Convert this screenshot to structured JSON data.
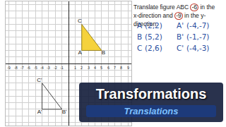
{
  "chart_data": {
    "type": "scatter",
    "xlim": [
      -9.5,
      9.5
    ],
    "ylim": [
      -9.5,
      9.5
    ],
    "xticks": [
      -9,
      -8,
      -7,
      -6,
      -5,
      -4,
      -3,
      -2,
      -1,
      1,
      2,
      3,
      4,
      5,
      6,
      7,
      8,
      9
    ],
    "yticks": [
      -9,
      -8,
      -7,
      -6,
      -5,
      -4,
      -3,
      -2,
      -1,
      1,
      2,
      3,
      4,
      5,
      6,
      7,
      8,
      9
    ],
    "tick_labels": "x",
    "grid": true,
    "series": [
      {
        "name": "ABC",
        "type": "area",
        "color": "#f5d23c",
        "points": [
          {
            "label": "A",
            "x": 2,
            "y": 2
          },
          {
            "label": "B",
            "x": 5,
            "y": 2
          },
          {
            "label": "C",
            "x": 2,
            "y": 6
          }
        ]
      },
      {
        "type": "line",
        "color": "#444444",
        "points": [
          {
            "label": "A'",
            "x": -4,
            "y": -7
          },
          {
            "label": "B'",
            "x": -1,
            "y": -7
          },
          {
            "label": "C'",
            "x": -4,
            "y": -3
          }
        ]
      }
    ]
  },
  "problem": {
    "lines": [
      [
        {
          "text": "Translate figure ABC "
        },
        {
          "text": "-6",
          "circled": true
        },
        {
          "text": " in the"
        }
      ],
      [
        {
          "text": "x-direction and "
        },
        {
          "text": "-9",
          "circled": true
        },
        {
          "text": " in the y-direction."
        }
      ]
    ]
  },
  "table": {
    "rows": [
      [
        "A",
        "(2,2)",
        "A'",
        "(-4,-7)"
      ],
      [
        "B",
        "(5,2)",
        "B'",
        "(-1,-7)"
      ],
      [
        "C",
        "(2,6)",
        "C'",
        "(-4,-3)"
      ]
    ]
  },
  "banner": {
    "title": "Transformations",
    "subtitle": "Translations"
  }
}
